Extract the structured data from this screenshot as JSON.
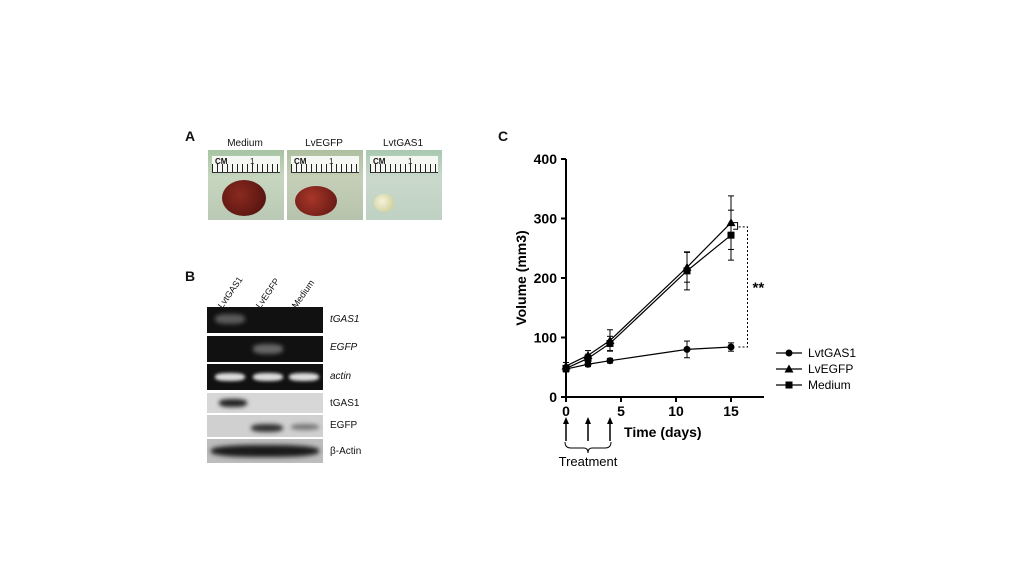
{
  "panels": {
    "a": "A",
    "b": "B",
    "c": "C"
  },
  "panel_a": {
    "labels": [
      "Medium",
      "LvEGFP",
      "LvtGAS1"
    ],
    "ruler_cm": "CM",
    "ruler_one": "1"
  },
  "panel_b": {
    "lanes": [
      "LvtGAS1",
      "LvEGFP",
      "Medium"
    ],
    "rows": [
      "tGAS1",
      "EGFP",
      "actin",
      "tGAS1",
      "EGFP",
      "β-Actin"
    ]
  },
  "chart_data": {
    "type": "line",
    "xlabel": "Time (days)",
    "ylabel": "Volume (mm3)",
    "xlim": [
      0,
      18
    ],
    "ylim": [
      0,
      400
    ],
    "xticks": [
      0,
      5,
      10,
      15
    ],
    "yticks": [
      0,
      100,
      200,
      300,
      400
    ],
    "series": [
      {
        "name": "LvtGAS1",
        "marker": "circle",
        "x": [
          0,
          2,
          4,
          11,
          15
        ],
        "y": [
          47,
          55,
          61,
          80,
          84
        ],
        "err": [
          5,
          4,
          4,
          14,
          7
        ]
      },
      {
        "name": "LvEGFP",
        "marker": "triangle",
        "x": [
          0,
          2,
          4,
          11,
          15
        ],
        "y": [
          52,
          70,
          95,
          218,
          293
        ],
        "err": [
          6,
          8,
          18,
          25,
          45
        ]
      },
      {
        "name": "Medium",
        "marker": "square",
        "x": [
          0,
          2,
          4,
          11,
          15
        ],
        "y": [
          48,
          65,
          90,
          212,
          272
        ],
        "err": [
          5,
          7,
          12,
          32,
          42
        ]
      }
    ],
    "significance": "**",
    "annotation": "Treatment",
    "treatment_days": [
      0,
      2,
      4
    ],
    "legend_position": "right"
  }
}
